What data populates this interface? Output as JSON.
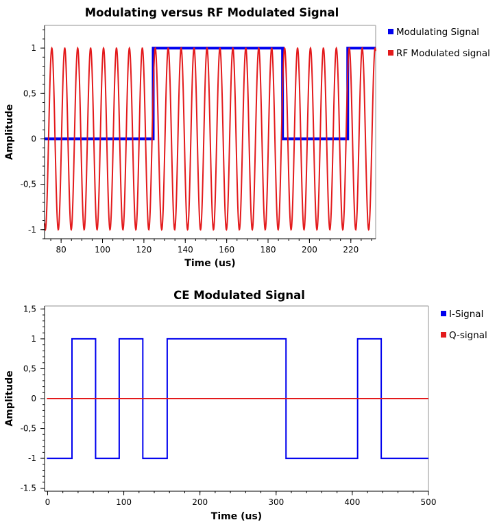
{
  "chart_data": [
    {
      "type": "line",
      "title": "Modulating versus RF Modulated Signal",
      "xlabel": "Time (us)",
      "ylabel": "Amplitude",
      "xlim": [
        72,
        232
      ],
      "ylim": [
        -1.1,
        1.25
      ],
      "xticks": [
        80,
        100,
        120,
        140,
        160,
        180,
        200,
        220
      ],
      "yticks": [
        1,
        0.5,
        0,
        -0.5,
        -1
      ],
      "ytick_labels": [
        "1",
        "0,5",
        "0",
        "-0,5",
        "-1"
      ],
      "legend_position": "right",
      "series": [
        {
          "name": "Modulating Signal",
          "color": "#0000ee",
          "points": [
            [
              72,
              0
            ],
            [
              124.5,
              0
            ],
            [
              124.5,
              1
            ],
            [
              187,
              1
            ],
            [
              187,
              0
            ],
            [
              218.5,
              0
            ],
            [
              218.5,
              1
            ],
            [
              232,
              1
            ]
          ]
        },
        {
          "name": "RF Modulated signal",
          "color": "#e31a1c",
          "function": "cos",
          "period": 6.25,
          "phase_ref": 75.5,
          "amplitude": 1
        }
      ]
    },
    {
      "type": "line",
      "title": "CE Modulated Signal",
      "xlabel": "Time (us)",
      "ylabel": "Amplitude",
      "xlim": [
        -4,
        500
      ],
      "ylim": [
        -1.55,
        1.55
      ],
      "xticks": [
        0,
        100,
        200,
        300,
        400,
        500
      ],
      "yticks": [
        1.5,
        1,
        0.5,
        0,
        -0.5,
        -1,
        -1.5
      ],
      "ytick_labels": [
        "1,5",
        "1",
        "0,5",
        "0",
        "-0,5",
        "-1",
        "-1.5"
      ],
      "legend_position": "right",
      "series": [
        {
          "name": "I-Signal",
          "color": "#0000ee",
          "points": [
            [
              -1,
              -1
            ],
            [
              32,
              -1
            ],
            [
              32,
              1
            ],
            [
              63,
              1
            ],
            [
              63,
              -1
            ],
            [
              94,
              -1
            ],
            [
              94,
              1
            ],
            [
              125,
              1
            ],
            [
              125,
              -1
            ],
            [
              157,
              -1
            ],
            [
              157,
              1
            ],
            [
              313,
              1
            ],
            [
              313,
              -1
            ],
            [
              407,
              -1
            ],
            [
              407,
              1
            ],
            [
              438,
              1
            ],
            [
              438,
              -1
            ],
            [
              500,
              -1
            ]
          ]
        },
        {
          "name": "Q-signal",
          "color": "#e31a1c",
          "points": [
            [
              -1,
              0
            ],
            [
              500,
              0
            ]
          ]
        }
      ]
    }
  ]
}
